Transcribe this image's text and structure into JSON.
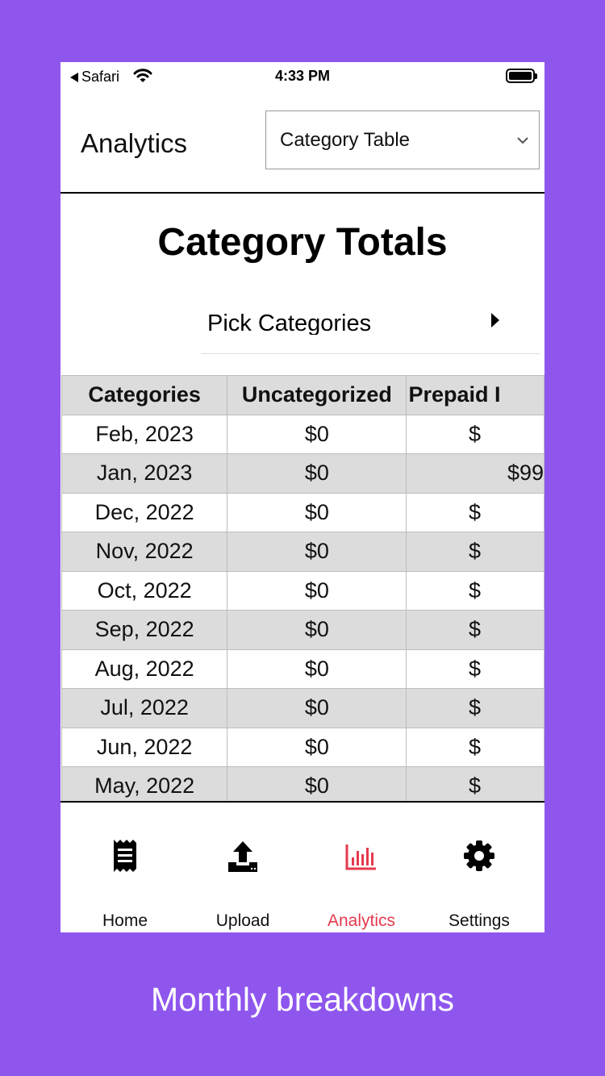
{
  "status_bar": {
    "back_app": "Safari",
    "time": "4:33 PM"
  },
  "header": {
    "title": "Analytics",
    "view_select": "Category Table"
  },
  "page_title": "Category Totals",
  "picker_label": "Pick Categories",
  "table": {
    "headers": [
      "Categories",
      "Uncategorized",
      "Prepaid I"
    ],
    "rows": [
      [
        "Feb, 2023",
        "$0",
        "$"
      ],
      [
        "Jan, 2023",
        "$0",
        "$99"
      ],
      [
        "Dec, 2022",
        "$0",
        "$"
      ],
      [
        "Nov, 2022",
        "$0",
        "$"
      ],
      [
        "Oct, 2022",
        "$0",
        "$"
      ],
      [
        "Sep, 2022",
        "$0",
        "$"
      ],
      [
        "Aug, 2022",
        "$0",
        "$"
      ],
      [
        "Jul, 2022",
        "$0",
        "$"
      ],
      [
        "Jun, 2022",
        "$0",
        "$"
      ],
      [
        "May, 2022",
        "$0",
        "$"
      ]
    ]
  },
  "tabs": [
    {
      "label": "Home",
      "icon": "receipt-icon"
    },
    {
      "label": "Upload",
      "icon": "upload-icon"
    },
    {
      "label": "Analytics",
      "icon": "bar-chart-icon",
      "active": true
    },
    {
      "label": "Settings",
      "icon": "gear-icon"
    }
  ],
  "colors": {
    "background": "#8f56ee",
    "active_tab": "#e53a4e",
    "row_shade": "#dcdcdc"
  },
  "caption": "Monthly breakdowns"
}
